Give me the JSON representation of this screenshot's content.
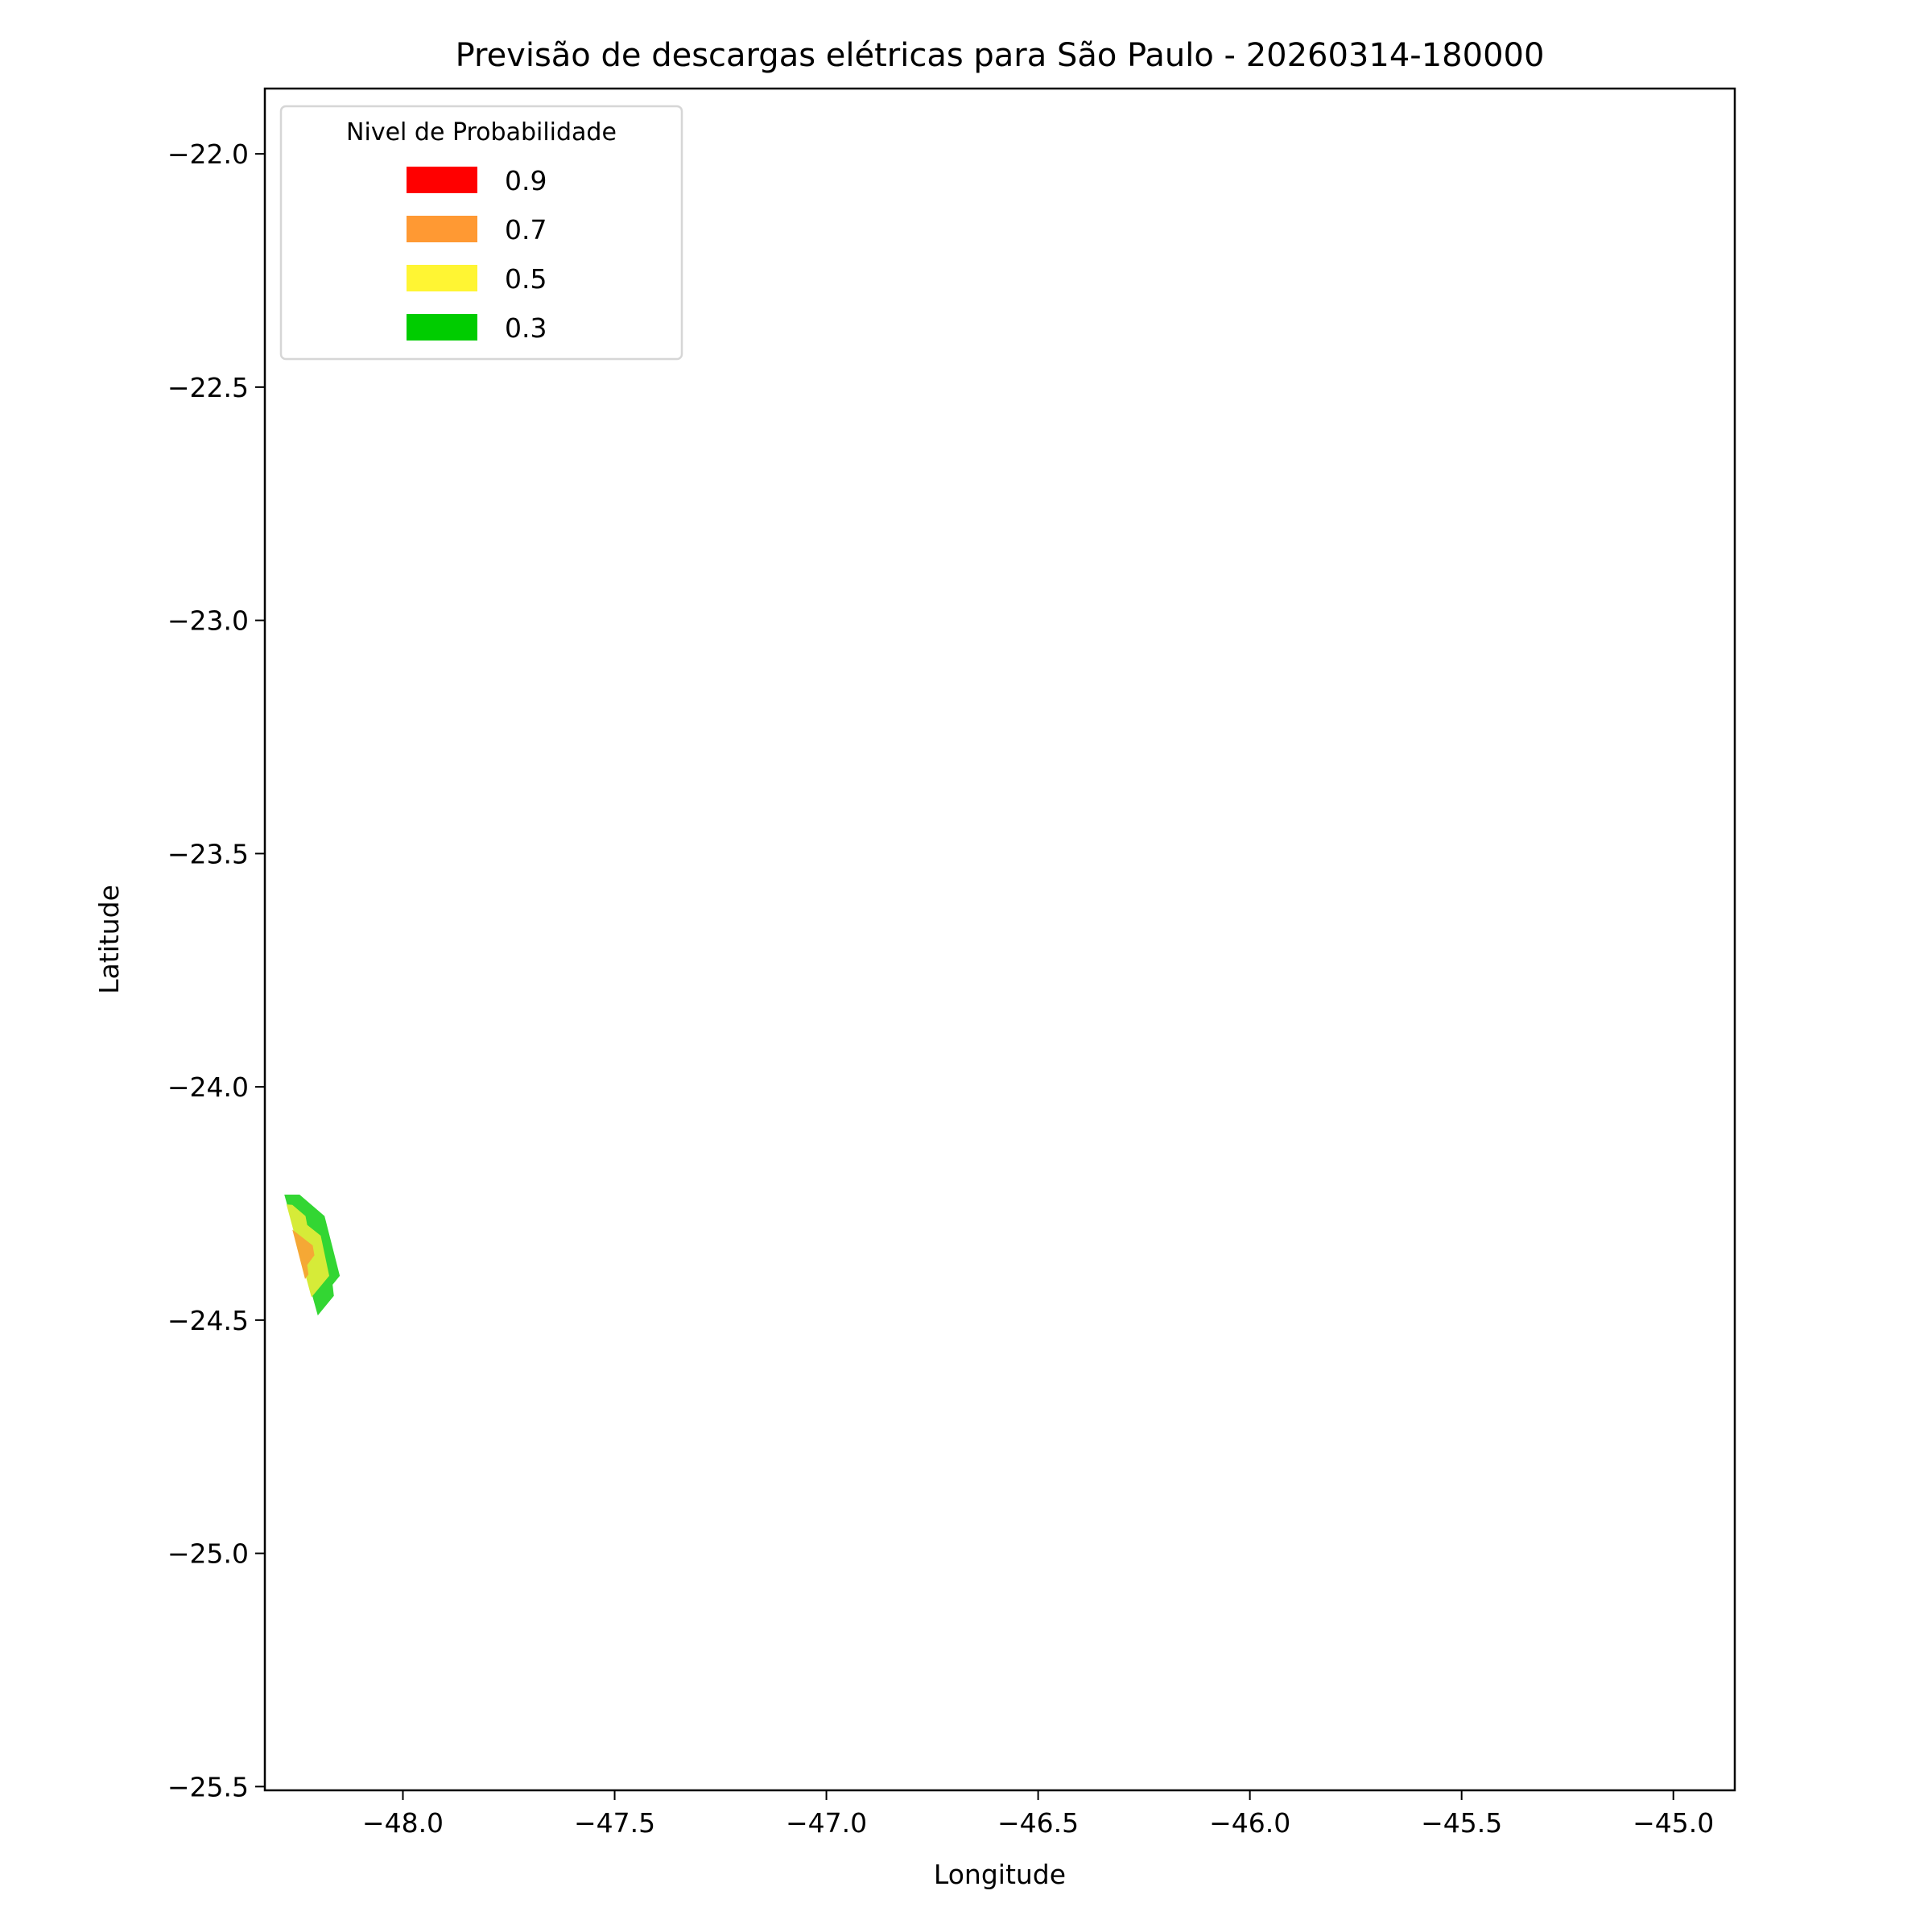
{
  "chart_data": {
    "type": "contourf",
    "title": "Previsão de descargas elétricas para São Paulo - 20260314-180000",
    "xlabel": "Longitude",
    "ylabel": "Latitude",
    "xlim": [
      -48.326,
      -44.855
    ],
    "ylim": [
      -25.508,
      -21.86
    ],
    "xticks": [
      -48.0,
      -47.5,
      -47.0,
      -46.5,
      -46.0,
      -45.5,
      -45.0
    ],
    "xtick_labels": [
      "−48.0",
      "−47.5",
      "−47.0",
      "−46.5",
      "−46.0",
      "−45.5",
      "−45.0"
    ],
    "yticks": [
      -22.0,
      -22.5,
      -23.0,
      -23.5,
      -24.0,
      -24.5,
      -25.0,
      -25.5
    ],
    "ytick_labels": [
      "−22.0",
      "−22.5",
      "−23.0",
      "−23.5",
      "−24.0",
      "−24.5",
      "−25.0",
      "−25.5"
    ],
    "grid": false,
    "legend": {
      "title": "Nivel de Probabilidade",
      "placement": "top-left",
      "entries": [
        {
          "label": "0.9",
          "color": "#ff0000"
        },
        {
          "label": "0.7",
          "color": "#ff9933"
        },
        {
          "label": "0.5",
          "color": "#fff533"
        },
        {
          "label": "0.3",
          "color": "#00cc00"
        }
      ]
    },
    "contours": [
      {
        "level": "0.3",
        "color": "#33d633",
        "points": [
          [
            -48.28,
            -24.231
          ],
          [
            -48.244,
            -24.231
          ],
          [
            -48.185,
            -24.277
          ],
          [
            -48.149,
            -24.405
          ],
          [
            -48.166,
            -24.424
          ],
          [
            -48.163,
            -24.448
          ],
          [
            -48.201,
            -24.49
          ]
        ]
      },
      {
        "level": "0.5",
        "color": "#d6eb38",
        "points": [
          [
            -48.275,
            -24.252
          ],
          [
            -48.261,
            -24.253
          ],
          [
            -48.23,
            -24.277
          ],
          [
            -48.226,
            -24.296
          ],
          [
            -48.194,
            -24.319
          ],
          [
            -48.174,
            -24.405
          ],
          [
            -48.216,
            -24.451
          ]
        ]
      },
      {
        "level": "0.7",
        "color": "#f5a835",
        "points": [
          [
            -48.261,
            -24.306
          ],
          [
            -48.213,
            -24.34
          ],
          [
            -48.209,
            -24.361
          ],
          [
            -48.226,
            -24.382
          ],
          [
            -48.223,
            -24.402
          ],
          [
            -48.231,
            -24.412
          ]
        ]
      }
    ]
  }
}
